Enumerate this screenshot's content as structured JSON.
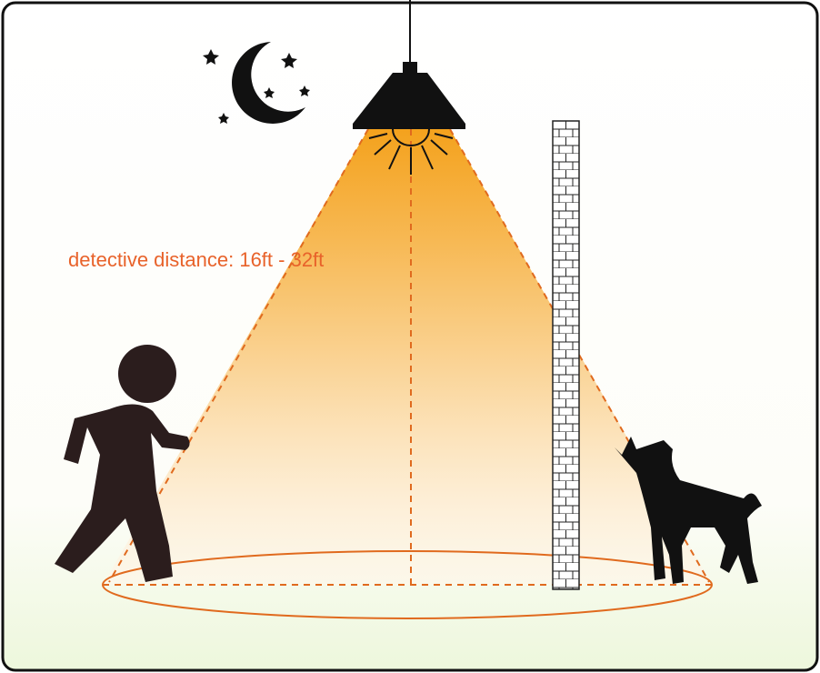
{
  "label": "detective distance: 16ft - 32ft"
}
